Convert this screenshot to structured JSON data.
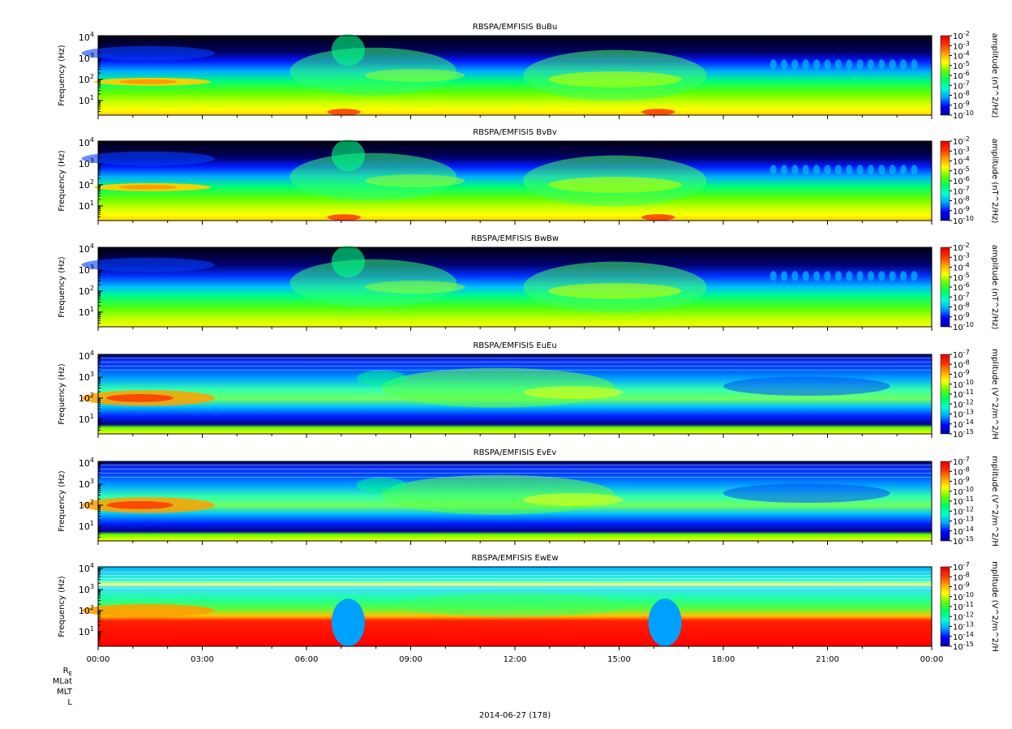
{
  "figure": {
    "x_ticks": [
      "00:00",
      "03:00",
      "06:00",
      "09:00",
      "12:00",
      "15:00",
      "18:00",
      "21:00",
      "00:00"
    ],
    "ephemeris_labels": [
      "R",
      "MLat",
      "MLT",
      "L"
    ],
    "ephemeris_subscript": "E",
    "date_label": "2014-06-27 (178)"
  },
  "colors": {
    "background": "#ffffff",
    "colormap": [
      "#0000a0",
      "#0000ff",
      "#00a0ff",
      "#00ffd0",
      "#00ff60",
      "#60ff00",
      "#ffff00",
      "#ffa000",
      "#ff3000",
      "#e00000"
    ]
  },
  "chart_data": [
    {
      "type": "heatmap",
      "title": "RBSPA/EMFISIS  BuBu",
      "ylabel": "Frequency (Hz)",
      "yscale": "log",
      "ylim": [
        2,
        12000
      ],
      "y_ticks": [
        {
          "base": "10",
          "exp": "1",
          "value": 10
        },
        {
          "base": "10",
          "exp": "2",
          "value": 100
        },
        {
          "base": "10",
          "exp": "3",
          "value": 1000
        },
        {
          "base": "10",
          "exp": "4",
          "value": 10000
        }
      ],
      "xlim": [
        "00:00",
        "00:00"
      ],
      "colorbar_label": "amplitude (nT^2/Hz)",
      "colorbar_ticks": [
        "-2",
        "-3",
        "-4",
        "-5",
        "-6",
        "-7",
        "-8",
        "-9",
        "-10"
      ],
      "colorbar_base": "10",
      "kind": "B"
    },
    {
      "type": "heatmap",
      "title": "RBSPA/EMFISIS  BvBv",
      "ylabel": "Frequency (Hz)",
      "yscale": "log",
      "ylim": [
        2,
        12000
      ],
      "y_ticks": [
        {
          "base": "10",
          "exp": "1",
          "value": 10
        },
        {
          "base": "10",
          "exp": "2",
          "value": 100
        },
        {
          "base": "10",
          "exp": "3",
          "value": 1000
        },
        {
          "base": "10",
          "exp": "4",
          "value": 10000
        }
      ],
      "xlim": [
        "00:00",
        "00:00"
      ],
      "colorbar_label": "amplitude (nT^2/Hz)",
      "colorbar_ticks": [
        "-2",
        "-3",
        "-4",
        "-5",
        "-6",
        "-7",
        "-8",
        "-9",
        "-10"
      ],
      "colorbar_base": "10",
      "kind": "B"
    },
    {
      "type": "heatmap",
      "title": "RBSPA/EMFISIS  BwBw",
      "ylabel": "Frequency (Hz)",
      "yscale": "log",
      "ylim": [
        2,
        12000
      ],
      "y_ticks": [
        {
          "base": "10",
          "exp": "1",
          "value": 10
        },
        {
          "base": "10",
          "exp": "2",
          "value": 100
        },
        {
          "base": "10",
          "exp": "3",
          "value": 1000
        },
        {
          "base": "10",
          "exp": "4",
          "value": 10000
        }
      ],
      "xlim": [
        "00:00",
        "00:00"
      ],
      "colorbar_label": "amplitude (nT^2/Hz)",
      "colorbar_ticks": [
        "-2",
        "-3",
        "-4",
        "-5",
        "-6",
        "-7",
        "-8",
        "-9",
        "-10"
      ],
      "colorbar_base": "10",
      "kind": "Bw"
    },
    {
      "type": "heatmap",
      "title": "RBSPA/EMFISIS  EuEu",
      "ylabel": "Frequency (Hz)",
      "yscale": "log",
      "ylim": [
        2,
        12000
      ],
      "y_ticks": [
        {
          "base": "10",
          "exp": "1",
          "value": 10
        },
        {
          "base": "10",
          "exp": "2",
          "value": 100
        },
        {
          "base": "10",
          "exp": "3",
          "value": 1000
        },
        {
          "base": "10",
          "exp": "4",
          "value": 10000
        }
      ],
      "xlim": [
        "00:00",
        "00:00"
      ],
      "colorbar_label": "mplitude (V^2/m^2/H",
      "colorbar_ticks": [
        "-7",
        "-8",
        "-9",
        "-10",
        "-11",
        "-12",
        "-13",
        "-14",
        "-15"
      ],
      "colorbar_base": "10",
      "kind": "E"
    },
    {
      "type": "heatmap",
      "title": "RBSPA/EMFISIS  EvEv",
      "ylabel": "Frequency (Hz)",
      "yscale": "log",
      "ylim": [
        2,
        12000
      ],
      "y_ticks": [
        {
          "base": "10",
          "exp": "1",
          "value": 10
        },
        {
          "base": "10",
          "exp": "2",
          "value": 100
        },
        {
          "base": "10",
          "exp": "3",
          "value": 1000
        },
        {
          "base": "10",
          "exp": "4",
          "value": 10000
        }
      ],
      "xlim": [
        "00:00",
        "00:00"
      ],
      "colorbar_label": "mplitude (V^2/m^2/H",
      "colorbar_ticks": [
        "-7",
        "-8",
        "-9",
        "-10",
        "-11",
        "-12",
        "-13",
        "-14",
        "-15"
      ],
      "colorbar_base": "10",
      "kind": "E"
    },
    {
      "type": "heatmap",
      "title": "RBSPA/EMFISIS  EwEw",
      "ylabel": "Frequency (Hz)",
      "yscale": "log",
      "ylim": [
        2,
        12000
      ],
      "y_ticks": [
        {
          "base": "10",
          "exp": "1",
          "value": 10
        },
        {
          "base": "10",
          "exp": "2",
          "value": 100
        },
        {
          "base": "10",
          "exp": "3",
          "value": 1000
        },
        {
          "base": "10",
          "exp": "4",
          "value": 10000
        }
      ],
      "xlim": [
        "00:00",
        "00:00"
      ],
      "colorbar_label": "mplitude (V^2/m^2/H",
      "colorbar_ticks": [
        "-7",
        "-8",
        "-9",
        "-10",
        "-11",
        "-12",
        "-13",
        "-14",
        "-15"
      ],
      "colorbar_base": "10",
      "kind": "Ew"
    }
  ]
}
